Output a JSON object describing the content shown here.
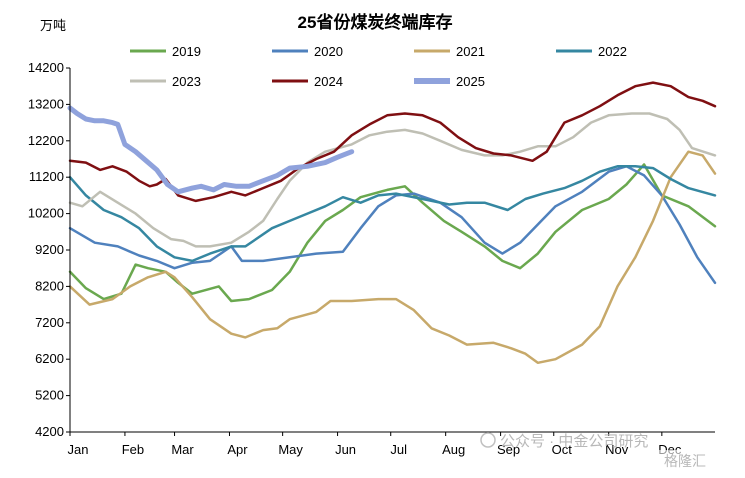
{
  "unit_label": "万吨",
  "watermark": {
    "text": "公众号 · 中金公司研究",
    "badge": "格隆汇"
  },
  "chart_data": {
    "type": "line",
    "title": "25省份煤炭终端库存",
    "xlabel": "",
    "ylabel": "万吨",
    "ylim": [
      4200,
      14200
    ],
    "yticks": [
      4200,
      5200,
      6200,
      7200,
      8200,
      9200,
      10200,
      11200,
      12200,
      13200,
      14200
    ],
    "x_domain": [
      1,
      365
    ],
    "xticks": [
      {
        "label": "Jan",
        "day": 1
      },
      {
        "label": "Feb",
        "day": 32
      },
      {
        "label": "Mar",
        "day": 60
      },
      {
        "label": "Apr",
        "day": 91
      },
      {
        "label": "May",
        "day": 121
      },
      {
        "label": "Jun",
        "day": 152
      },
      {
        "label": "Jul",
        "day": 182
      },
      {
        "label": "Aug",
        "day": 213
      },
      {
        "label": "Sep",
        "day": 244
      },
      {
        "label": "Oct",
        "day": 274
      },
      {
        "label": "Nov",
        "day": 305
      },
      {
        "label": "Dec",
        "day": 335
      }
    ],
    "grid": false,
    "legend": "top",
    "series": [
      {
        "name": "2019",
        "color": "#6aa84f",
        "width": 2.5,
        "dashed": false,
        "points": [
          [
            1,
            8600
          ],
          [
            10,
            8150
          ],
          [
            20,
            7850
          ],
          [
            30,
            8000
          ],
          [
            38,
            8800
          ],
          [
            45,
            8700
          ],
          [
            55,
            8600
          ],
          [
            62,
            8300
          ],
          [
            70,
            8000
          ],
          [
            85,
            8200
          ],
          [
            92,
            7800
          ],
          [
            102,
            7850
          ],
          [
            115,
            8100
          ],
          [
            125,
            8600
          ],
          [
            135,
            9400
          ],
          [
            145,
            10000
          ],
          [
            155,
            10300
          ],
          [
            165,
            10650
          ],
          [
            180,
            10850
          ],
          [
            190,
            10950
          ],
          [
            200,
            10500
          ],
          [
            212,
            10000
          ],
          [
            222,
            9700
          ],
          [
            235,
            9300
          ],
          [
            245,
            8900
          ],
          [
            255,
            8700
          ],
          [
            265,
            9100
          ],
          [
            275,
            9700
          ],
          [
            290,
            10300
          ],
          [
            305,
            10600
          ],
          [
            315,
            11000
          ],
          [
            325,
            11550
          ],
          [
            335,
            10700
          ],
          [
            350,
            10400
          ],
          [
            365,
            9850
          ]
        ]
      },
      {
        "name": "2020",
        "color": "#4f81bd",
        "width": 2.5,
        "dashed": false,
        "points": [
          [
            1,
            9800
          ],
          [
            15,
            9400
          ],
          [
            28,
            9300
          ],
          [
            40,
            9050
          ],
          [
            50,
            8900
          ],
          [
            60,
            8700
          ],
          [
            70,
            8850
          ],
          [
            80,
            8900
          ],
          [
            92,
            9300
          ],
          [
            98,
            8900
          ],
          [
            110,
            8900
          ],
          [
            125,
            9000
          ],
          [
            140,
            9100
          ],
          [
            155,
            9150
          ],
          [
            165,
            9800
          ],
          [
            175,
            10400
          ],
          [
            185,
            10700
          ],
          [
            195,
            10750
          ],
          [
            210,
            10500
          ],
          [
            222,
            10100
          ],
          [
            235,
            9400
          ],
          [
            245,
            9100
          ],
          [
            255,
            9400
          ],
          [
            265,
            9900
          ],
          [
            275,
            10400
          ],
          [
            290,
            10800
          ],
          [
            305,
            11350
          ],
          [
            315,
            11500
          ],
          [
            325,
            11250
          ],
          [
            335,
            10700
          ],
          [
            345,
            9900
          ],
          [
            355,
            9000
          ],
          [
            365,
            8300
          ]
        ]
      },
      {
        "name": "2021",
        "color": "#c7a96a",
        "width": 2.5,
        "dashed": false,
        "points": [
          [
            1,
            8200
          ],
          [
            12,
            7700
          ],
          [
            25,
            7850
          ],
          [
            35,
            8200
          ],
          [
            45,
            8450
          ],
          [
            55,
            8600
          ],
          [
            60,
            8450
          ],
          [
            70,
            7900
          ],
          [
            80,
            7300
          ],
          [
            92,
            6900
          ],
          [
            100,
            6800
          ],
          [
            110,
            7000
          ],
          [
            118,
            7050
          ],
          [
            125,
            7300
          ],
          [
            140,
            7500
          ],
          [
            148,
            7800
          ],
          [
            160,
            7800
          ],
          [
            175,
            7850
          ],
          [
            185,
            7850
          ],
          [
            195,
            7550
          ],
          [
            205,
            7050
          ],
          [
            215,
            6850
          ],
          [
            225,
            6600
          ],
          [
            240,
            6650
          ],
          [
            250,
            6500
          ],
          [
            258,
            6350
          ],
          [
            265,
            6100
          ],
          [
            275,
            6200
          ],
          [
            290,
            6600
          ],
          [
            300,
            7100
          ],
          [
            310,
            8200
          ],
          [
            320,
            9000
          ],
          [
            330,
            10000
          ],
          [
            340,
            11200
          ],
          [
            350,
            11900
          ],
          [
            358,
            11800
          ],
          [
            365,
            11300
          ]
        ]
      },
      {
        "name": "2022",
        "color": "#3587a1",
        "width": 2.5,
        "dashed": false,
        "points": [
          [
            1,
            11200
          ],
          [
            10,
            10700
          ],
          [
            20,
            10300
          ],
          [
            30,
            10100
          ],
          [
            40,
            9800
          ],
          [
            50,
            9300
          ],
          [
            60,
            9000
          ],
          [
            70,
            8900
          ],
          [
            80,
            9100
          ],
          [
            92,
            9300
          ],
          [
            100,
            9300
          ],
          [
            115,
            9800
          ],
          [
            125,
            10000
          ],
          [
            135,
            10200
          ],
          [
            145,
            10400
          ],
          [
            155,
            10650
          ],
          [
            165,
            10500
          ],
          [
            175,
            10700
          ],
          [
            185,
            10750
          ],
          [
            200,
            10600
          ],
          [
            215,
            10450
          ],
          [
            225,
            10500
          ],
          [
            235,
            10500
          ],
          [
            248,
            10300
          ],
          [
            258,
            10600
          ],
          [
            268,
            10750
          ],
          [
            280,
            10900
          ],
          [
            290,
            11100
          ],
          [
            300,
            11350
          ],
          [
            310,
            11500
          ],
          [
            320,
            11500
          ],
          [
            330,
            11450
          ],
          [
            340,
            11150
          ],
          [
            350,
            10900
          ],
          [
            365,
            10700
          ]
        ]
      },
      {
        "name": "2023",
        "color": "#bfbfb4",
        "width": 2.5,
        "dashed": false,
        "points": [
          [
            1,
            10500
          ],
          [
            8,
            10400
          ],
          [
            18,
            10800
          ],
          [
            28,
            10500
          ],
          [
            38,
            10200
          ],
          [
            48,
            9800
          ],
          [
            58,
            9500
          ],
          [
            65,
            9450
          ],
          [
            72,
            9300
          ],
          [
            80,
            9300
          ],
          [
            92,
            9400
          ],
          [
            102,
            9700
          ],
          [
            110,
            10000
          ],
          [
            118,
            10600
          ],
          [
            125,
            11100
          ],
          [
            135,
            11600
          ],
          [
            145,
            11900
          ],
          [
            160,
            12100
          ],
          [
            170,
            12350
          ],
          [
            180,
            12450
          ],
          [
            190,
            12500
          ],
          [
            200,
            12400
          ],
          [
            210,
            12200
          ],
          [
            222,
            11950
          ],
          [
            235,
            11800
          ],
          [
            245,
            11800
          ],
          [
            255,
            11900
          ],
          [
            265,
            12050
          ],
          [
            275,
            12050
          ],
          [
            285,
            12300
          ],
          [
            295,
            12700
          ],
          [
            305,
            12900
          ],
          [
            318,
            12950
          ],
          [
            328,
            12950
          ],
          [
            338,
            12800
          ],
          [
            345,
            12500
          ],
          [
            352,
            12000
          ],
          [
            365,
            11800
          ]
        ]
      },
      {
        "name": "2024",
        "color": "#7f0f12",
        "width": 2.5,
        "dashed": false,
        "points": [
          [
            1,
            11650
          ],
          [
            10,
            11600
          ],
          [
            18,
            11400
          ],
          [
            25,
            11500
          ],
          [
            33,
            11350
          ],
          [
            40,
            11100
          ],
          [
            46,
            10950
          ],
          [
            50,
            11000
          ],
          [
            55,
            11150
          ],
          [
            62,
            10700
          ],
          [
            72,
            10550
          ],
          [
            82,
            10650
          ],
          [
            92,
            10800
          ],
          [
            100,
            10700
          ],
          [
            110,
            10900
          ],
          [
            120,
            11100
          ],
          [
            130,
            11450
          ],
          [
            140,
            11700
          ],
          [
            150,
            11900
          ],
          [
            160,
            12350
          ],
          [
            170,
            12650
          ],
          [
            180,
            12900
          ],
          [
            190,
            12950
          ],
          [
            200,
            12900
          ],
          [
            210,
            12700
          ],
          [
            220,
            12300
          ],
          [
            230,
            12000
          ],
          [
            240,
            11850
          ],
          [
            250,
            11800
          ],
          [
            262,
            11650
          ],
          [
            270,
            11900
          ],
          [
            280,
            12700
          ],
          [
            290,
            12900
          ],
          [
            300,
            13150
          ],
          [
            310,
            13450
          ],
          [
            320,
            13700
          ],
          [
            330,
            13800
          ],
          [
            340,
            13700
          ],
          [
            350,
            13400
          ],
          [
            358,
            13300
          ],
          [
            365,
            13150
          ]
        ]
      },
      {
        "name": "2025",
        "color": "#8fa2dc",
        "width": 5,
        "dashed": false,
        "points": [
          [
            1,
            13100
          ],
          [
            5,
            12950
          ],
          [
            10,
            12800
          ],
          [
            15,
            12750
          ],
          [
            20,
            12750
          ],
          [
            25,
            12700
          ],
          [
            28,
            12650
          ],
          [
            32,
            12100
          ],
          [
            38,
            11900
          ],
          [
            44,
            11650
          ],
          [
            50,
            11400
          ],
          [
            56,
            11000
          ],
          [
            62,
            10800
          ],
          [
            70,
            10900
          ],
          [
            75,
            10950
          ],
          [
            82,
            10850
          ],
          [
            88,
            11000
          ],
          [
            95,
            10950
          ],
          [
            102,
            10950
          ],
          [
            110,
            11100
          ],
          [
            118,
            11250
          ],
          [
            125,
            11450
          ],
          [
            135,
            11500
          ],
          [
            145,
            11600
          ],
          [
            152,
            11750
          ],
          [
            160,
            11900
          ]
        ]
      }
    ]
  }
}
